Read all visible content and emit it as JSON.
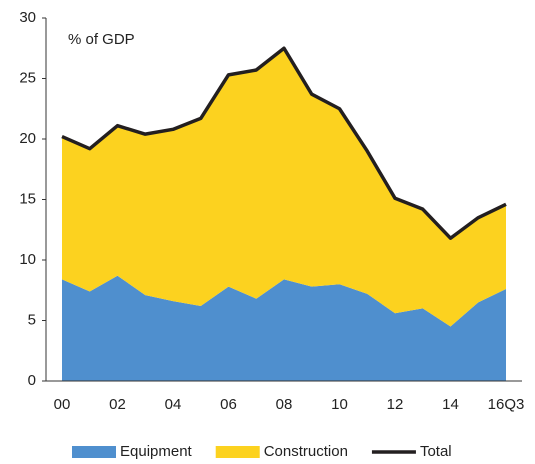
{
  "chart_data": {
    "type": "stacked_area",
    "annotation": "% of GDP",
    "categories": [
      "00",
      null,
      "02",
      null,
      "04",
      null,
      "06",
      null,
      "08",
      null,
      "10",
      null,
      "12",
      null,
      "14",
      null,
      "16Q3"
    ],
    "series": [
      {
        "name": "Equipment",
        "color": "#4f8fce",
        "values": [
          8.4,
          7.4,
          8.7,
          7.1,
          6.6,
          6.2,
          7.8,
          6.8,
          8.4,
          7.8,
          8.0,
          7.2,
          5.6,
          6.0,
          4.5,
          6.5,
          7.6
        ]
      },
      {
        "name": "Construction",
        "color": "#fcd21f",
        "values": [
          11.8,
          11.8,
          12.4,
          13.3,
          14.2,
          15.5,
          17.5,
          18.9,
          19.1,
          15.9,
          14.5,
          11.8,
          9.5,
          8.2,
          7.3,
          7.0,
          7.0
        ]
      }
    ],
    "line_series": {
      "name": "Total",
      "color": "#231f20",
      "values": [
        20.2,
        19.2,
        21.1,
        20.4,
        20.8,
        21.7,
        25.3,
        25.7,
        27.5,
        23.7,
        22.5,
        19.0,
        15.1,
        14.2,
        11.8,
        13.5,
        14.6
      ]
    },
    "ylim": [
      0,
      30
    ],
    "yticks": [
      0,
      5,
      10,
      15,
      20,
      25,
      30
    ]
  }
}
